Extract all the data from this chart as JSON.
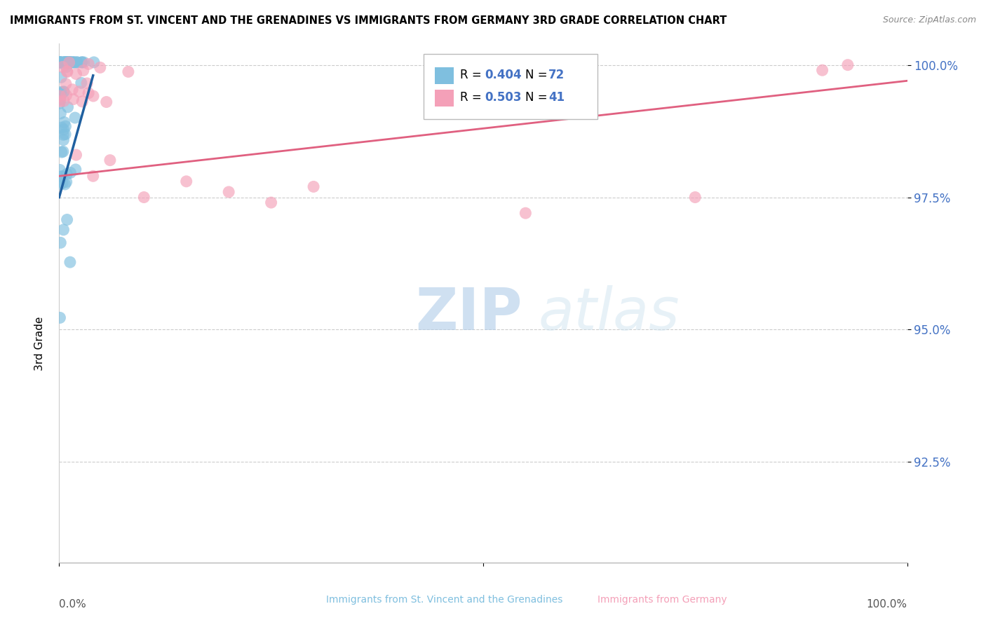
{
  "title": "IMMIGRANTS FROM ST. VINCENT AND THE GRENADINES VS IMMIGRANTS FROM GERMANY 3RD GRADE CORRELATION CHART",
  "source": "Source: ZipAtlas.com",
  "ylabel": "3rd Grade",
  "color_blue": "#7fbfdf",
  "color_pink": "#f4a0b8",
  "color_blue_line": "#2060a0",
  "color_pink_line": "#e06080",
  "watermark_zip": "ZIP",
  "watermark_atlas": "atlas",
  "legend_r1": "R = 0.404",
  "legend_n1": "N = 72",
  "legend_r2": "R = 0.503",
  "legend_n2": "N = 41",
  "ytick_vals": [
    0.925,
    0.95,
    0.975,
    1.0
  ],
  "ytick_labels": [
    "92.5%",
    "95.0%",
    "97.5%",
    "100.0%"
  ],
  "ymin": 0.906,
  "ymax": 1.004,
  "xmin": 0.0,
  "xmax": 1.0,
  "blue_trend_x": [
    0.0,
    0.04
  ],
  "blue_trend_y_start": 0.975,
  "blue_trend_y_end": 0.998,
  "pink_trend_x": [
    0.0,
    1.0
  ],
  "pink_trend_y_start": 0.979,
  "pink_trend_y_end": 0.997
}
